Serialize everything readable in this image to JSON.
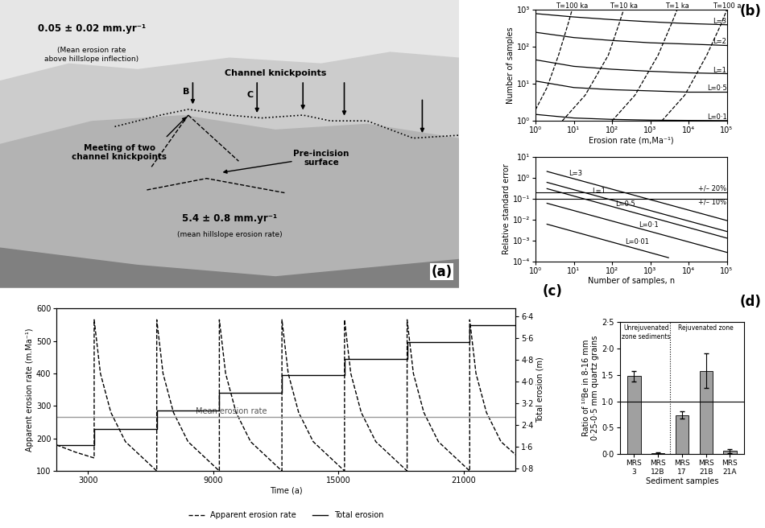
{
  "photo": {
    "panel_label": "(a)",
    "annotations": [
      "0.05 ± 0.02 mm.yr⁻¹",
      "(Mean erosion rate\nabove hillslope inflection)",
      "Channel knickpoints",
      "B",
      "C",
      "Meeting of two\nchannel knickpoints",
      "Pre-incision\nsurface",
      "5.4 ± 0.8 mm.yr⁻¹",
      "(mean hillslope erosion rate)"
    ]
  },
  "chart_data": [
    {
      "type": "line",
      "panel_label": "(b)",
      "log": true,
      "grid": false,
      "x_label": "Erosion rate (m,Ma⁻¹)",
      "y_label": "Number of samples",
      "xlim": [
        1,
        100000
      ],
      "ylim": [
        1,
        1000
      ],
      "xticks": [
        {
          "value": 1,
          "label": "10⁰"
        },
        {
          "value": 10,
          "label": "10¹"
        },
        {
          "value": 100,
          "label": "10²"
        },
        {
          "value": 1000,
          "label": "10³"
        },
        {
          "value": 10000,
          "label": "10⁴"
        },
        {
          "value": 100000,
          "label": "10⁵"
        }
      ],
      "yticks": [
        {
          "value": 1,
          "label": "10⁰"
        },
        {
          "value": 10,
          "label": "10¹"
        },
        {
          "value": 100,
          "label": "10²"
        },
        {
          "value": 1000,
          "label": "10³"
        }
      ],
      "series": [
        {
          "name": "L=3",
          "color": "#000000",
          "line_style": "solid",
          "x": [
            1,
            10,
            100,
            1000,
            10000,
            100000
          ],
          "values": [
            800,
            650,
            550,
            480,
            430,
            400
          ]
        },
        {
          "name": "L=2",
          "color": "#000000",
          "line_style": "solid",
          "x": [
            1,
            10,
            100,
            1000,
            10000,
            100000
          ],
          "values": [
            250,
            180,
            150,
            130,
            120,
            110
          ]
        },
        {
          "name": "L=1",
          "color": "#000000",
          "line_style": "solid",
          "x": [
            1,
            10,
            100,
            1000,
            10000,
            100000
          ],
          "values": [
            45,
            30,
            25,
            22,
            20,
            19
          ]
        },
        {
          "name": "L=0·5",
          "color": "#000000",
          "line_style": "solid",
          "x": [
            1,
            10,
            100,
            1000,
            10000,
            100000
          ],
          "values": [
            12,
            8,
            7,
            6.5,
            6,
            6
          ]
        },
        {
          "name": "L=0·1",
          "color": "#000000",
          "line_style": "solid",
          "x": [
            1,
            10,
            100,
            1000,
            10000,
            100000
          ],
          "values": [
            1.5,
            1.2,
            1.1,
            1.05,
            1.03,
            1.02
          ]
        },
        {
          "name": "T=100 ka",
          "color": "#000000",
          "line_style": "dashed",
          "x": [
            1,
            2,
            4,
            7,
            9
          ],
          "values": [
            2,
            8,
            60,
            400,
            1000
          ]
        },
        {
          "name": "T=10 ka",
          "color": "#000000",
          "line_style": "dashed",
          "x": [
            5,
            20,
            80,
            150,
            200
          ],
          "values": [
            1,
            5,
            60,
            400,
            1000
          ]
        },
        {
          "name": "T=1 ka",
          "color": "#000000",
          "line_style": "dashed",
          "x": [
            100,
            400,
            1600,
            3500,
            5000
          ],
          "values": [
            1,
            5,
            60,
            400,
            1000
          ]
        },
        {
          "name": "T=100 a",
          "color": "#000000",
          "line_style": "dashed",
          "x": [
            2000,
            8000,
            30000,
            70000,
            100000
          ],
          "values": [
            1,
            5,
            60,
            400,
            1000
          ]
        }
      ]
    },
    {
      "type": "line",
      "log": true,
      "grid": false,
      "x_label": "Number of samples, n",
      "y_label": "Relative standard error",
      "xlim": [
        1,
        100000
      ],
      "ylim": [
        0.0001,
        10
      ],
      "xticks": [
        {
          "value": 1,
          "label": "10⁰"
        },
        {
          "value": 10,
          "label": "10¹"
        },
        {
          "value": 100,
          "label": "10²"
        },
        {
          "value": 1000,
          "label": "10³"
        },
        {
          "value": 10000,
          "label": "10⁴"
        },
        {
          "value": 100000,
          "label": "10⁵"
        }
      ],
      "yticks": [
        {
          "value": 0.0001,
          "label": "10⁻⁴"
        },
        {
          "value": 0.001,
          "label": "10⁻³"
        },
        {
          "value": 0.01,
          "label": "10⁻²"
        },
        {
          "value": 0.1,
          "label": "10⁻¹"
        },
        {
          "value": 1,
          "label": "10⁰"
        },
        {
          "value": 10,
          "label": "10¹"
        }
      ],
      "series": [
        {
          "name": "L=3",
          "color": "#000000",
          "line_style": "solid",
          "x": [
            2,
            100000
          ],
          "values": [
            2,
            0.009
          ]
        },
        {
          "name": "L=1",
          "color": "#000000",
          "line_style": "solid",
          "x": [
            2,
            100000
          ],
          "values": [
            0.6,
            0.0027
          ]
        },
        {
          "name": "L=0·5",
          "color": "#000000",
          "line_style": "solid",
          "x": [
            2,
            100000
          ],
          "values": [
            0.3,
            0.0013
          ]
        },
        {
          "name": "L=0·1",
          "color": "#000000",
          "line_style": "solid",
          "x": [
            2,
            100000
          ],
          "values": [
            0.06,
            0.00027
          ]
        },
        {
          "name": "L=0·01",
          "color": "#000000",
          "line_style": "solid",
          "x": [
            2,
            3000
          ],
          "values": [
            0.006,
            0.00015
          ]
        }
      ],
      "reference_lines": [
        {
          "value": 0.2,
          "label": "+/– 20%",
          "color": "#000000"
        },
        {
          "value": 0.1,
          "label": "+/– 10%",
          "color": "#000000"
        }
      ]
    },
    {
      "type": "line",
      "panel_label": "(c)",
      "grid": false,
      "legend": "lower center",
      "x_label": "Time (a)",
      "y_label": "Apparent erosion rate (m.Ma⁻¹)",
      "y2_label": "Total erosion (m)",
      "xlim": [
        1500,
        23500
      ],
      "xticks": [
        3000,
        9000,
        15000,
        21000
      ],
      "ylim": [
        100,
        600
      ],
      "yticks": [
        100,
        200,
        300,
        400,
        500,
        600
      ],
      "y2lim": [
        0.7,
        6.7
      ],
      "y2ticks": [
        {
          "value": 0.8,
          "label": "0·8"
        },
        {
          "value": 1.6,
          "label": "1·6"
        },
        {
          "value": 2.4,
          "label": "2·4"
        },
        {
          "value": 3.2,
          "label": "3·2"
        },
        {
          "value": 4.0,
          "label": "4·0"
        },
        {
          "value": 4.8,
          "label": "4·8"
        },
        {
          "value": 5.6,
          "label": "5·6"
        },
        {
          "value": 6.4,
          "label": "6·4"
        }
      ],
      "series": [
        {
          "name": "Apparent erosion rate",
          "color": "#000000",
          "line_style": "dashed",
          "type": "line",
          "x": [
            1500,
            2400,
            3300,
            3300,
            3600,
            4100,
            4800,
            6300,
            6300,
            6600,
            7100,
            7800,
            9300,
            9300,
            9600,
            10100,
            10800,
            12300,
            12300,
            12600,
            13100,
            13800,
            15300,
            15300,
            15600,
            16100,
            16800,
            18300,
            18300,
            18600,
            19100,
            19800,
            21300,
            21300,
            21600,
            22100,
            22800,
            23500
          ],
          "values": [
            180,
            158,
            140,
            565,
            400,
            280,
            190,
            100,
            565,
            400,
            280,
            190,
            100,
            565,
            400,
            280,
            190,
            100,
            565,
            400,
            280,
            190,
            100,
            565,
            400,
            280,
            190,
            100,
            565,
            400,
            280,
            190,
            100,
            565,
            400,
            280,
            190,
            150
          ]
        },
        {
          "name": "Total erosion",
          "color": "#000000",
          "line_style": "solid",
          "type": "step",
          "axis": "y2",
          "x": [
            1500,
            3300,
            6300,
            9300,
            12300,
            15300,
            18300,
            21300,
            23500
          ],
          "values": [
            1.66,
            2.26,
            2.92,
            3.58,
            4.24,
            4.84,
            5.46,
            6.08,
            6.08
          ]
        }
      ],
      "reference_lines": [
        {
          "value": 265,
          "label": "Mean erosion rate",
          "color": "#999999"
        }
      ]
    },
    {
      "type": "bar",
      "panel_label": "(d)",
      "grid": false,
      "x_label": "Sediment samples",
      "y_label": "Ratio of ¹⁰Be in 8-16 mm\n0·25-0·5 mm quartz grains",
      "categories": [
        "MRS\n3",
        "MRS\n12B",
        "MRS\n17",
        "MRS\n21B",
        "MRS\n21A"
      ],
      "values": [
        1.48,
        0.02,
        0.74,
        1.58,
        0.06
      ],
      "errors": [
        0.1,
        0.01,
        0.07,
        0.33,
        0.04
      ],
      "color": "#a0a0a0",
      "ylim": [
        0,
        2.5
      ],
      "yticks": [
        {
          "value": 0,
          "label": "0·0"
        },
        {
          "value": 0.5,
          "label": "0·5"
        },
        {
          "value": 1.0,
          "label": "1·0"
        },
        {
          "value": 1.5,
          "label": "1·5"
        },
        {
          "value": 2.0,
          "label": "2·0"
        },
        {
          "value": 2.5,
          "label": "2·5"
        }
      ],
      "annotations": [
        "Unrejuvenated\nzone sediments",
        "Rejuvenated zone"
      ],
      "reference_lines": [
        {
          "value": 1.0,
          "label": null,
          "color": "#000000"
        }
      ]
    }
  ]
}
